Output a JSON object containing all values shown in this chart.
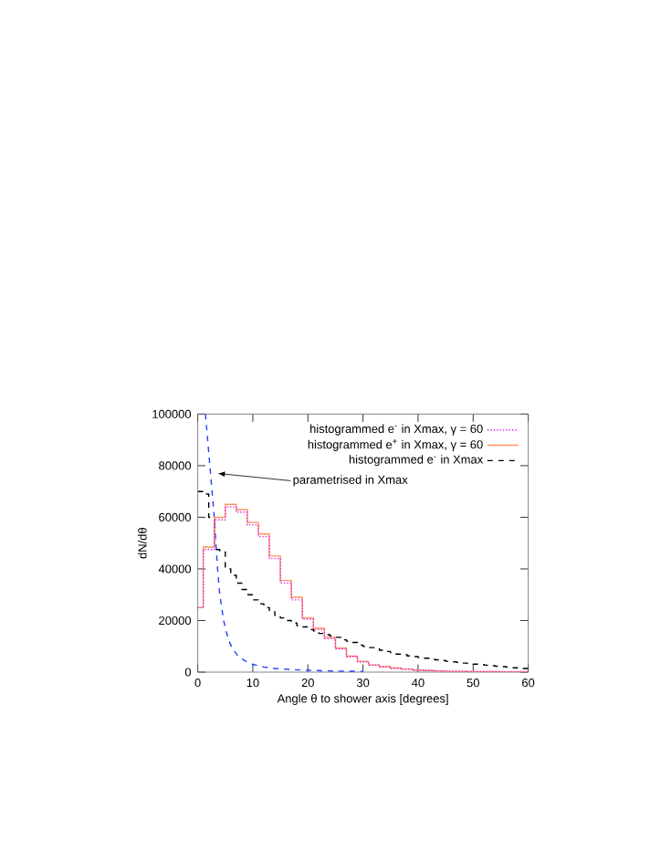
{
  "chart_data": {
    "type": "line",
    "xlabel": "Angle θ to shower axis [degrees]",
    "ylabel": "dN/dθ",
    "xlim": [
      0,
      60
    ],
    "ylim": [
      0,
      100000
    ],
    "xticks": [
      0,
      10,
      20,
      30,
      40,
      50,
      60
    ],
    "yticks": [
      0,
      20000,
      40000,
      60000,
      80000,
      100000
    ],
    "legend": "top right",
    "grid": false,
    "annotations": [
      {
        "text": "parametrised in Xmax",
        "x": 3.6,
        "y": 77000
      }
    ],
    "series": [
      {
        "name": "histogrammed e$^{-}$ in Xmax, γ = 60",
        "type": "step",
        "color": "#e020e0",
        "line_style": "dotted",
        "x": [
          0,
          1,
          3,
          5,
          7,
          9,
          11,
          13,
          15,
          17,
          19,
          21,
          23,
          25,
          27,
          29,
          31,
          33,
          35,
          37,
          39,
          41,
          43,
          45,
          47,
          49,
          51,
          53,
          55,
          57,
          59,
          60
        ],
        "values": [
          25000,
          47500,
          59000,
          64000,
          62000,
          57000,
          52500,
          44000,
          34500,
          28000,
          20500,
          16500,
          13000,
          9000,
          6000,
          4000,
          2700,
          2000,
          1500,
          1100,
          800,
          600,
          400,
          300,
          300,
          200,
          200,
          200,
          100,
          100,
          100,
          100
        ]
      },
      {
        "name": "histogrammed e$^{+}$ in Xmax, γ = 60",
        "type": "step",
        "color": "#ff9060",
        "line_style": "solid",
        "x": [
          0,
          1,
          3,
          5,
          7,
          9,
          11,
          13,
          15,
          17,
          19,
          21,
          23,
          25,
          27,
          29,
          31,
          33,
          35,
          37,
          39,
          41,
          43,
          45,
          47,
          49,
          51,
          53,
          55,
          57,
          59,
          60
        ],
        "values": [
          25000,
          48500,
          60000,
          65000,
          63000,
          58000,
          53500,
          45000,
          35500,
          29000,
          21000,
          17000,
          13500,
          9300,
          6200,
          4200,
          2800,
          2100,
          1600,
          1200,
          800,
          600,
          500,
          300,
          300,
          200,
          200,
          200,
          100,
          100,
          100,
          100
        ]
      },
      {
        "name": "histogrammed e$^{-}$ in Xmax",
        "type": "step",
        "color": "#000000",
        "line_style": "dashed",
        "x": [
          0,
          1,
          2,
          3,
          4,
          5,
          6,
          7,
          8,
          9,
          10,
          11,
          12,
          13,
          14,
          15,
          16,
          17,
          18,
          19,
          20,
          21,
          22,
          23,
          24,
          25,
          26,
          27,
          28,
          29,
          30,
          31,
          32,
          33,
          34,
          35,
          36,
          37,
          38,
          39,
          40,
          41,
          42,
          43,
          44,
          45,
          46,
          47,
          48,
          49,
          50,
          51,
          52,
          53,
          54,
          55,
          56,
          57,
          58,
          59,
          60
        ],
        "values": [
          70000,
          69000,
          60000,
          47500,
          47000,
          40000,
          37500,
          34500,
          32000,
          30000,
          28000,
          26500,
          25000,
          23500,
          22000,
          21000,
          20000,
          19000,
          18000,
          17500,
          16500,
          16000,
          15000,
          14500,
          14000,
          13500,
          12500,
          12000,
          11500,
          10500,
          10000,
          9500,
          9000,
          8500,
          8000,
          7500,
          7000,
          6800,
          6300,
          6000,
          5700,
          5400,
          5100,
          4800,
          4500,
          4200,
          4000,
          3800,
          3500,
          3300,
          3100,
          2900,
          2700,
          2500,
          2300,
          2100,
          1900,
          1700,
          1600,
          1400,
          1400
        ]
      },
      {
        "type": "line",
        "color": "#2040ff",
        "line_style": "dashed",
        "x": [
          1.4,
          1.8,
          2.2,
          2.6,
          3.0,
          3.6,
          4.0,
          4.7,
          5.5,
          6.3,
          7.2,
          8.5,
          10,
          12,
          14,
          17,
          20,
          25,
          30
        ],
        "values": [
          100000,
          90000,
          80000,
          70000,
          60000,
          40000,
          30000,
          20000,
          13000,
          9000,
          6600,
          4500,
          3000,
          2000,
          1400,
          1000,
          700,
          400,
          300
        ]
      }
    ]
  }
}
